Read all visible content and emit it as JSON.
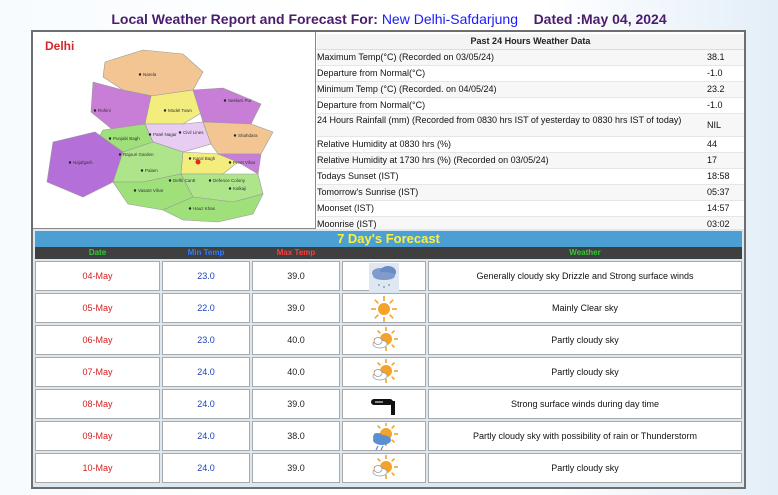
{
  "header": {
    "prefix": "Local Weather Report and Forecast For:",
    "station": "New Delhi-Safdarjung",
    "dated": "Dated :May 04, 2024"
  },
  "map": {
    "title": "Delhi",
    "districts": [
      "Narela",
      "Rohini",
      "Model Town",
      "Seelam Pur",
      "Punjabi Bagh",
      "Patel Nagar",
      "Civil Lines",
      "Shahdara",
      "Rajouri Garden",
      "Karol Bagh",
      "Preet Vihar",
      "Najafgarh",
      "Palam",
      "Delhi Cantt",
      "Defence Colony",
      "Vasant Vihar",
      "Kalkaji",
      "Hauz Khas"
    ],
    "colors": {
      "north": "#f3c592",
      "west": "#b56fd8",
      "south": "#9fe07a",
      "central": "#f2ed7d",
      "northeast": "#c87dd7",
      "east": "#aee58a",
      "marker": "#e52424"
    }
  },
  "past24": {
    "title": "Past 24 Hours Weather Data",
    "rows": [
      {
        "label": "Maximum Temp(°C) (Recorded on 03/05/24)",
        "value": "38.1"
      },
      {
        "label": "Departure from Normal(°C)",
        "value": "-1.0"
      },
      {
        "label": "Minimum Temp (°C) (Recorded. on 04/05/24)",
        "value": "23.2"
      },
      {
        "label": "Departure from Normal(°C)",
        "value": "-1.0"
      },
      {
        "label": "24 Hours Rainfall (mm) (Recorded from 0830 hrs IST of yesterday to 0830 hrs IST of today)",
        "value": "NIL"
      },
      {
        "label": "Relative Humidity at 0830 hrs (%)",
        "value": "44"
      },
      {
        "label": "Relative Humidity at 1730 hrs (%) (Recorded on 03/05/24)",
        "value": "17"
      },
      {
        "label": "Todays Sunset (IST)",
        "value": "18:58"
      },
      {
        "label": "Tomorrow's Sunrise (IST)",
        "value": "05:37"
      },
      {
        "label": "Moonset (IST)",
        "value": "14:57"
      },
      {
        "label": "Moonrise (IST)",
        "value": "03:02"
      }
    ]
  },
  "forecast": {
    "title": "7 Day's Forecast",
    "headers": {
      "date": "Date",
      "min": "Min Temp",
      "max": "Max Temp",
      "weather": "Weather"
    },
    "header_colors": {
      "date": "#37c837",
      "min": "#2f7bff",
      "max": "#ff3b3b",
      "weather": "#37c837"
    },
    "rows": [
      {
        "date": "04-May",
        "min": "23.0",
        "max": "39.0",
        "icon": "cloud-drizzle-icon",
        "weather": "Generally cloudy sky Drizzle and Strong surface winds"
      },
      {
        "date": "05-May",
        "min": "22.0",
        "max": "39.0",
        "icon": "sun-icon",
        "weather": "Mainly Clear sky"
      },
      {
        "date": "06-May",
        "min": "23.0",
        "max": "40.0",
        "icon": "partly-cloudy-icon",
        "weather": "Partly cloudy sky"
      },
      {
        "date": "07-May",
        "min": "24.0",
        "max": "40.0",
        "icon": "partly-cloudy-icon",
        "weather": "Partly cloudy sky"
      },
      {
        "date": "08-May",
        "min": "24.0",
        "max": "39.0",
        "icon": "wind-icon",
        "weather": "Strong surface winds during day time"
      },
      {
        "date": "09-May",
        "min": "24.0",
        "max": "38.0",
        "icon": "partly-cloudy-rain-icon",
        "weather": "Partly cloudy sky with possibility of rain or Thunderstorm"
      },
      {
        "date": "10-May",
        "min": "24.0",
        "max": "39.0",
        "icon": "partly-cloudy-icon",
        "weather": "Partly cloudy sky"
      }
    ]
  }
}
